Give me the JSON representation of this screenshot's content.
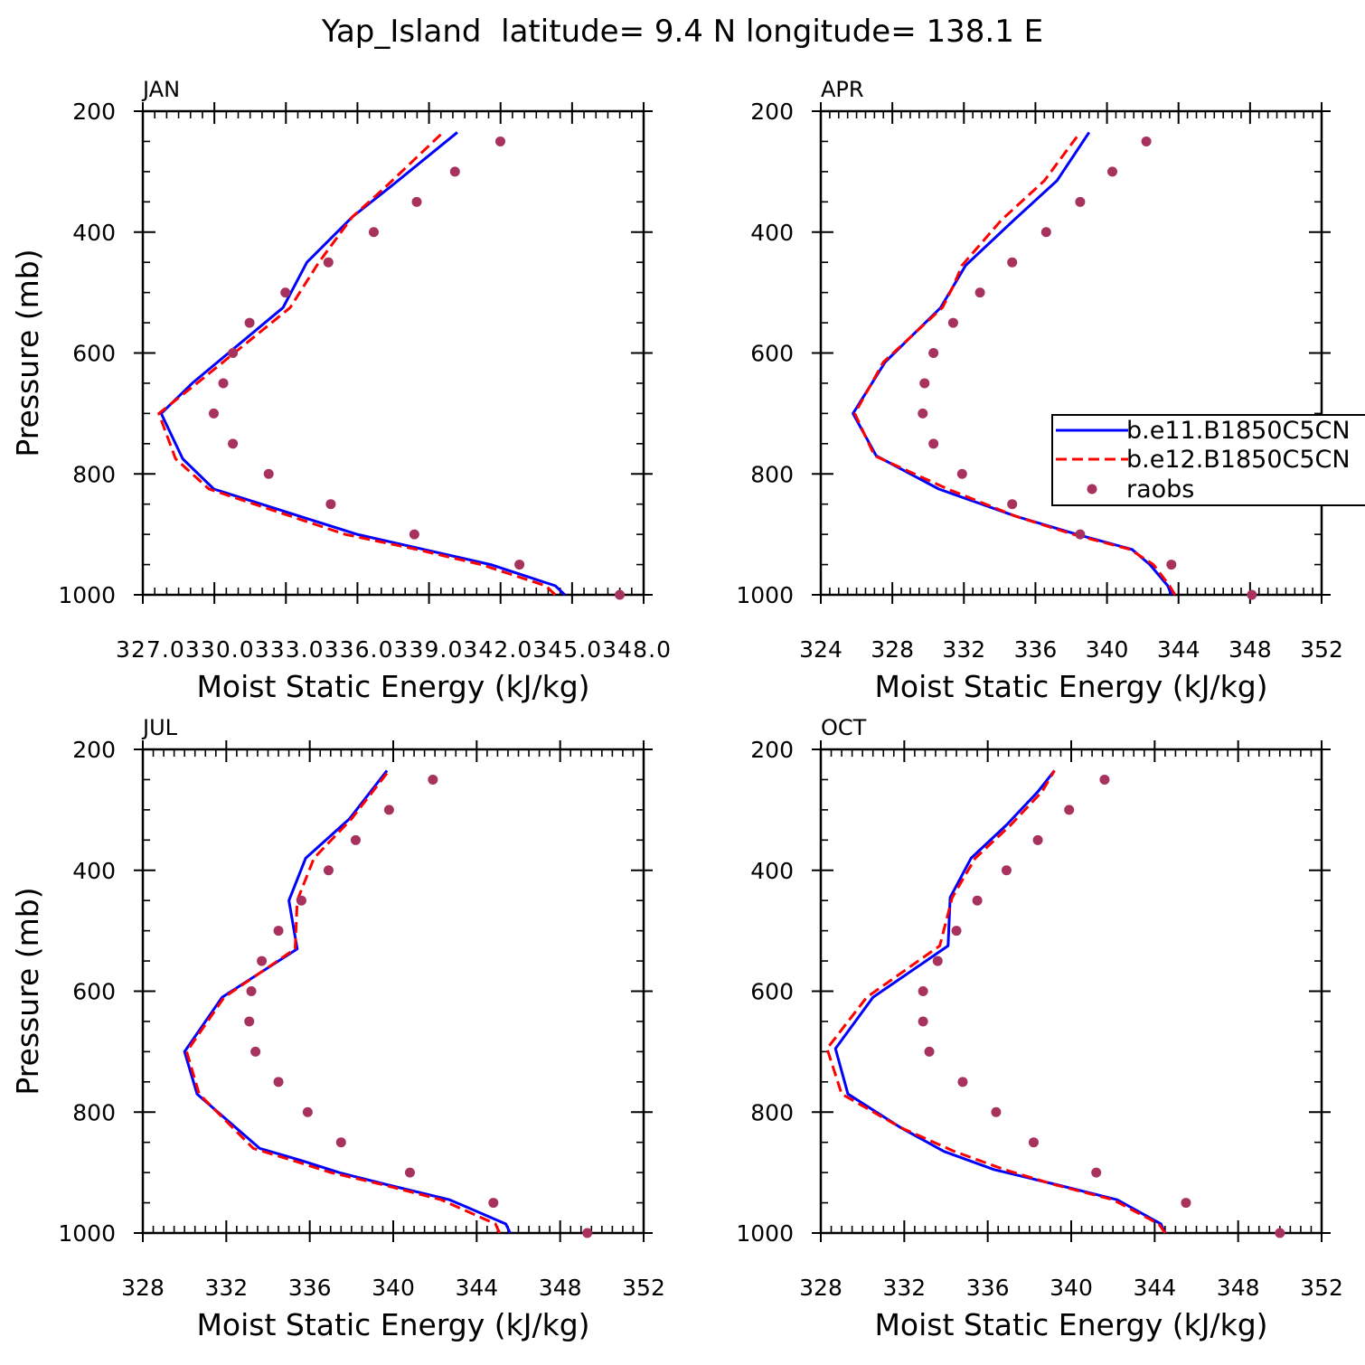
{
  "figure": {
    "title": "Yap_Island  latitude= 9.4 N longitude= 138.1 E",
    "ylabel": "Pressure (mb)",
    "xlabel": "Moist Static Energy (kJ/kg)"
  },
  "legend": {
    "entries": [
      "b.e11.B1850C5CN",
      "b.e12.B1850C5CN",
      "raobs"
    ]
  },
  "colors": {
    "series1": "#0000ff",
    "series2": "#ff0000",
    "raobs": "#a8325e"
  },
  "chart_data": [
    {
      "type": "line",
      "panel": "JAN",
      "xlabel": "Moist Static Energy (kJ/kg)",
      "ylabel": "Pressure (mb)",
      "xlim": [
        327.03,
        348.0
      ],
      "ylim": [
        1000,
        200
      ],
      "xticks": [
        "327.03",
        "30.03",
        "33.03",
        "36.03",
        "39.03",
        "42.03",
        "45.03",
        "48.0"
      ],
      "yticks": [
        "200",
        "400",
        "600",
        "800",
        "1000"
      ],
      "y_inverted": true,
      "grid": false,
      "series": [
        {
          "name": "b.e11.B1850C5CN",
          "style": "solid",
          "x": [
            344.7,
            344.3,
            341.6,
            338.8,
            336.0,
            334.0,
            332.0,
            330.0,
            328.7,
            327.8,
            329.1,
            332.9,
            333.9,
            335.8,
            337.4,
            340.2
          ],
          "p": [
            1000,
            985,
            950,
            925,
            900,
            875,
            850,
            825,
            775,
            700,
            650,
            525,
            450,
            375,
            325,
            235
          ]
        },
        {
          "name": "b.e12.B1850C5CN",
          "style": "dashed",
          "x": [
            344.3,
            343.9,
            341.2,
            338.5,
            335.5,
            333.6,
            331.7,
            329.8,
            328.4,
            327.7,
            329.3,
            333.2,
            334.4,
            335.8,
            337.2,
            339.6
          ],
          "p": [
            1000,
            985,
            950,
            925,
            900,
            875,
            850,
            825,
            775,
            700,
            650,
            525,
            450,
            375,
            325,
            235
          ]
        },
        {
          "name": "raobs",
          "style": "dots",
          "x": [
            347.0,
            342.8,
            338.4,
            334.9,
            332.3,
            330.8,
            330.0,
            330.4,
            330.8,
            331.5,
            333.0,
            334.8,
            336.7,
            338.5,
            340.1,
            342.0
          ],
          "p": [
            1000,
            950,
            900,
            850,
            800,
            750,
            700,
            650,
            600,
            550,
            500,
            450,
            400,
            350,
            300,
            250
          ]
        }
      ]
    },
    {
      "type": "line",
      "panel": "APR",
      "xlabel": "Moist Static Energy (kJ/kg)",
      "ylabel": "Pressure (mb)",
      "xlim": [
        324,
        352
      ],
      "ylim": [
        1000,
        200
      ],
      "xticks": [
        "324",
        "328",
        "332",
        "336",
        "340",
        "344",
        "348",
        "352"
      ],
      "yticks": [
        "200",
        "400",
        "600",
        "800",
        "1000"
      ],
      "y_inverted": true,
      "grid": false,
      "series": [
        {
          "name": "b.e11.B1850C5CN",
          "style": "solid",
          "x": [
            343.6,
            343.4,
            342.4,
            341.4,
            338.3,
            334.9,
            330.6,
            327.1,
            325.8,
            327.6,
            330.7,
            331.4,
            332.1,
            334.8,
            337.2,
            339.0
          ],
          "p": [
            1000,
            985,
            950,
            925,
            900,
            870,
            825,
            770,
            700,
            615,
            525,
            490,
            455,
            380,
            315,
            235
          ]
        },
        {
          "name": "b.e12.B1850C5CN",
          "style": "dashed",
          "x": [
            343.8,
            343.5,
            342.6,
            341.3,
            338.1,
            334.9,
            331.1,
            327.0,
            325.9,
            327.5,
            330.8,
            331.4,
            331.9,
            334.1,
            336.5,
            338.5
          ],
          "p": [
            1000,
            985,
            950,
            925,
            900,
            870,
            825,
            770,
            700,
            615,
            525,
            490,
            455,
            380,
            315,
            235
          ]
        },
        {
          "name": "raobs",
          "style": "dots",
          "x": [
            348.1,
            343.6,
            338.5,
            334.7,
            331.9,
            330.3,
            329.7,
            329.8,
            330.3,
            331.4,
            332.9,
            334.7,
            336.6,
            338.5,
            340.3,
            342.2
          ],
          "p": [
            1000,
            950,
            900,
            850,
            800,
            750,
            700,
            650,
            600,
            550,
            500,
            450,
            400,
            350,
            300,
            250
          ]
        }
      ]
    },
    {
      "type": "line",
      "panel": "JUL",
      "xlabel": "Moist Static Energy (kJ/kg)",
      "ylabel": "Pressure (mb)",
      "xlim": [
        328,
        352
      ],
      "ylim": [
        1000,
        200
      ],
      "xticks": [
        "328",
        "332",
        "336",
        "340",
        "344",
        "348",
        "352"
      ],
      "yticks": [
        "200",
        "400",
        "600",
        "800",
        "1000"
      ],
      "y_inverted": true,
      "grid": false,
      "series": [
        {
          "name": "b.e11.B1850C5CN",
          "style": "solid",
          "x": [
            345.6,
            345.4,
            342.7,
            339.7,
            337.4,
            335.6,
            333.6,
            330.6,
            330.0,
            331.8,
            335.4,
            335.0,
            335.8,
            337.9,
            339.7
          ],
          "p": [
            1000,
            985,
            945,
            920,
            900,
            880,
            860,
            770,
            700,
            610,
            530,
            450,
            380,
            315,
            235
          ]
        },
        {
          "name": "b.e12.B1850C5CN",
          "style": "dashed",
          "x": [
            345.1,
            344.9,
            342.3,
            339.5,
            337.0,
            335.2,
            333.3,
            330.7,
            330.1,
            331.9,
            335.3,
            335.4,
            336.2,
            338.0,
            339.8
          ],
          "p": [
            1000,
            985,
            945,
            920,
            900,
            880,
            860,
            770,
            700,
            610,
            530,
            450,
            380,
            315,
            235
          ]
        },
        {
          "name": "raobs",
          "style": "dots",
          "x": [
            349.3,
            344.8,
            340.8,
            337.5,
            335.9,
            334.5,
            333.4,
            333.1,
            333.2,
            333.7,
            334.5,
            335.6,
            336.9,
            338.2,
            339.8,
            341.9
          ],
          "p": [
            1000,
            950,
            900,
            850,
            800,
            750,
            700,
            650,
            600,
            550,
            500,
            450,
            400,
            350,
            300,
            250
          ]
        }
      ]
    },
    {
      "type": "line",
      "panel": "OCT",
      "xlabel": "Moist Static Energy (kJ/kg)",
      "ylabel": "Pressure (mb)",
      "xlim": [
        328,
        352
      ],
      "ylim": [
        1000,
        200
      ],
      "xticks": [
        "328",
        "332",
        "336",
        "340",
        "344",
        "348",
        "352"
      ],
      "yticks": [
        "200",
        "400",
        "600",
        "800",
        "1000"
      ],
      "y_inverted": true,
      "grid": false,
      "series": [
        {
          "name": "b.e11.B1850C5CN",
          "style": "solid",
          "x": [
            344.5,
            344.3,
            342.2,
            339.3,
            336.3,
            333.9,
            331.8,
            329.3,
            328.7,
            330.5,
            334.1,
            334.2,
            335.2,
            336.9,
            338.4,
            339.2
          ],
          "p": [
            1000,
            985,
            945,
            920,
            895,
            865,
            825,
            770,
            695,
            610,
            525,
            445,
            380,
            325,
            270,
            235
          ]
        },
        {
          "name": "b.e12.B1850C5CN",
          "style": "dashed",
          "x": [
            344.5,
            344.2,
            342.0,
            339.2,
            336.8,
            334.4,
            331.8,
            329.0,
            328.3,
            330.2,
            333.7,
            334.3,
            335.4,
            337.1,
            338.6,
            339.2
          ],
          "p": [
            1000,
            985,
            945,
            920,
            895,
            865,
            825,
            770,
            695,
            610,
            525,
            445,
            380,
            325,
            270,
            235
          ]
        },
        {
          "name": "raobs",
          "style": "dots",
          "x": [
            350.0,
            345.5,
            341.2,
            338.2,
            336.4,
            334.8,
            333.2,
            332.9,
            332.9,
            333.6,
            334.5,
            335.5,
            336.9,
            338.4,
            339.9,
            341.6
          ],
          "p": [
            1000,
            950,
            900,
            850,
            800,
            750,
            700,
            650,
            600,
            550,
            500,
            450,
            400,
            350,
            300,
            250
          ]
        }
      ]
    }
  ]
}
